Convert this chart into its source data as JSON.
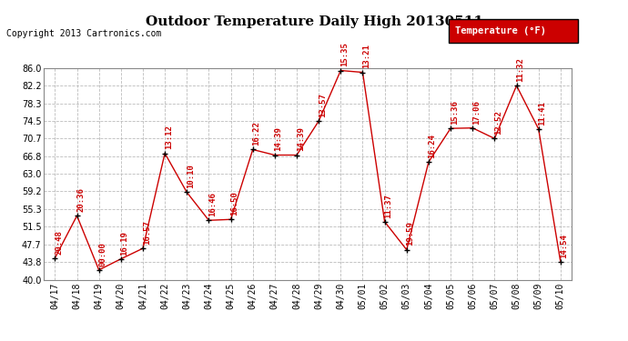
{
  "title": "Outdoor Temperature Daily High 20130511",
  "copyright": "Copyright 2013 Cartronics.com",
  "legend_label": "Temperature (°F)",
  "dates": [
    "04/17",
    "04/18",
    "04/19",
    "04/20",
    "04/21",
    "04/22",
    "04/23",
    "04/24",
    "04/25",
    "04/26",
    "04/27",
    "04/28",
    "04/29",
    "04/30",
    "05/01",
    "05/02",
    "05/03",
    "05/04",
    "05/05",
    "05/06",
    "05/07",
    "05/08",
    "05/09",
    "05/10"
  ],
  "values": [
    44.7,
    53.9,
    42.1,
    44.5,
    46.8,
    67.5,
    59.0,
    52.9,
    53.1,
    68.3,
    67.1,
    67.1,
    74.5,
    85.5,
    85.1,
    52.6,
    46.5,
    65.6,
    72.9,
    73.0,
    70.7,
    82.2,
    72.8,
    43.9
  ],
  "annotations": [
    "20:48",
    "20:36",
    "00:00",
    "16:19",
    "16:57",
    "13:12",
    "10:10",
    "16:46",
    "16:50",
    "16:22",
    "14:39",
    "14:39",
    "13:57",
    "15:35",
    "13:21",
    "11:37",
    "19:59",
    "16:24",
    "15:36",
    "17:06",
    "12:52",
    "11:32",
    "11:41",
    "14:54"
  ],
  "ylim": [
    40.0,
    86.0
  ],
  "yticks": [
    40.0,
    43.8,
    47.7,
    51.5,
    55.3,
    59.2,
    63.0,
    66.8,
    70.7,
    74.5,
    78.3,
    82.2,
    86.0
  ],
  "line_color": "#cc0000",
  "marker_color": "black",
  "annotation_color": "#cc0000",
  "bg_color": "#ffffff",
  "grid_color": "#bbbbbb",
  "title_fontsize": 11,
  "copyright_fontsize": 7,
  "annotation_fontsize": 6.5,
  "tick_fontsize": 7,
  "legend_bg": "#cc0000",
  "legend_text_color": "#ffffff",
  "legend_fontsize": 7.5
}
